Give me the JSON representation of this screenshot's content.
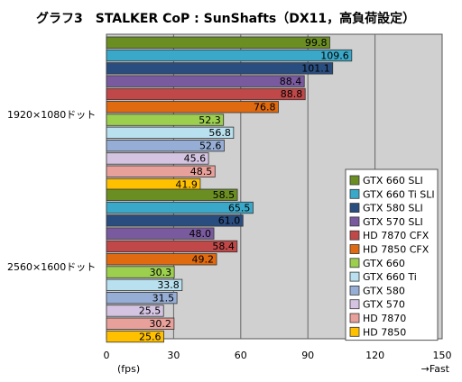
{
  "chart_data": {
    "type": "bar",
    "orientation": "horizontal",
    "title": "グラフ3　STALKER CoP : SunShafts（DX11，高負荷設定）",
    "xlabel": "(fps)",
    "xlabel_right": "→Fast",
    "xlim": [
      0,
      150
    ],
    "xticks": [
      0,
      30,
      60,
      90,
      120,
      150
    ],
    "grid": true,
    "legend_position": "bottom-right",
    "categories": [
      "1920×1080ドット",
      "2560×1600ドット"
    ],
    "series": [
      {
        "name": "GTX 660 SLI",
        "color": "#6b8e23",
        "values": [
          99.8,
          58.5
        ]
      },
      {
        "name": "GTX 660 Ti SLI",
        "color": "#3aa8c8",
        "values": [
          109.6,
          65.5
        ]
      },
      {
        "name": "GTX 580 SLI",
        "color": "#2a4d80",
        "values": [
          101.1,
          61.0
        ]
      },
      {
        "name": "GTX 570 SLI",
        "color": "#7a5a9e",
        "values": [
          88.4,
          48.0
        ]
      },
      {
        "name": "HD 7870 CFX",
        "color": "#c04848",
        "values": [
          88.8,
          58.4
        ]
      },
      {
        "name": "HD 7850 CFX",
        "color": "#e06a10",
        "values": [
          76.8,
          49.2
        ]
      },
      {
        "name": "GTX 660",
        "color": "#9ccf4e",
        "values": [
          52.3,
          30.3
        ]
      },
      {
        "name": "GTX 660 Ti",
        "color": "#b8e0ee",
        "values": [
          56.8,
          33.8
        ]
      },
      {
        "name": "GTX 580",
        "color": "#96aed6",
        "values": [
          52.6,
          31.5
        ]
      },
      {
        "name": "GTX 570",
        "color": "#d4c4e2",
        "values": [
          45.6,
          25.5
        ]
      },
      {
        "name": "HD 7870",
        "color": "#e8a09a",
        "values": [
          48.5,
          30.2
        ]
      },
      {
        "name": "HD 7850",
        "color": "#ffc000",
        "values": [
          41.9,
          25.6
        ]
      }
    ]
  }
}
